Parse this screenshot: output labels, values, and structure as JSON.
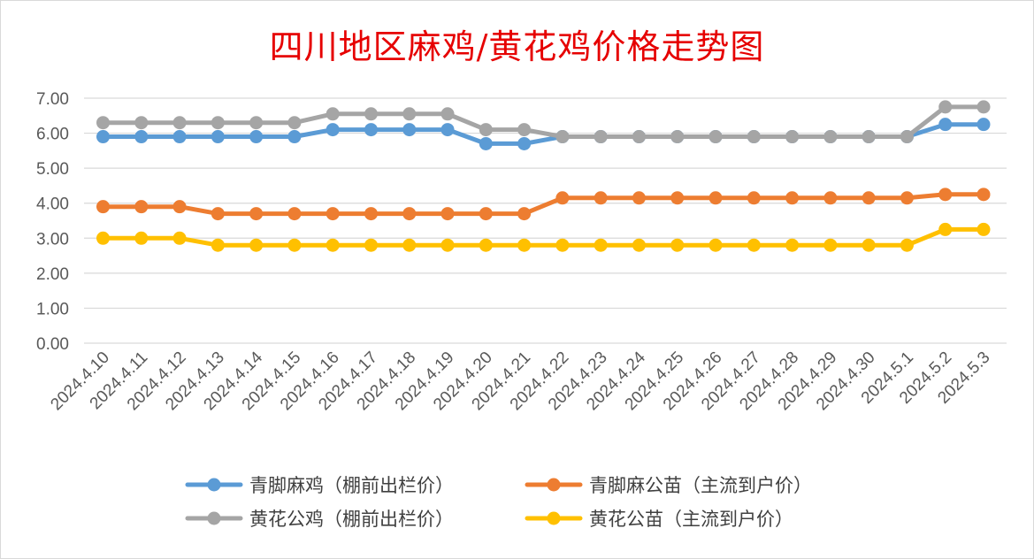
{
  "chart_data": {
    "type": "line",
    "title": "四川地区麻鸡/黄花鸡价格走势图",
    "categories": [
      "2024.4.10",
      "2024.4.11",
      "2024.4.12",
      "2024.4.13",
      "2024.4.14",
      "2024.4.15",
      "2024.4.16",
      "2024.4.17",
      "2024.4.18",
      "2024.4.19",
      "2024.4.20",
      "2024.4.21",
      "2024.4.22",
      "2024.4.23",
      "2024.4.24",
      "2024.4.25",
      "2024.4.26",
      "2024.4.27",
      "2024.4.28",
      "2024.4.29",
      "2024.4.30",
      "2024.5.1",
      "2024.5.2",
      "2024.5.3"
    ],
    "ylim": [
      0,
      7
    ],
    "yticks": [
      "0.00",
      "1.00",
      "2.00",
      "3.00",
      "4.00",
      "5.00",
      "6.00",
      "7.00"
    ],
    "grid": true,
    "legend_position": "bottom",
    "series": [
      {
        "name": "青脚麻鸡（棚前出栏价）",
        "color": "#5b9bd5",
        "values": [
          5.9,
          5.9,
          5.9,
          5.9,
          5.9,
          5.9,
          6.1,
          6.1,
          6.1,
          6.1,
          5.7,
          5.7,
          5.9,
          5.9,
          5.9,
          5.9,
          5.9,
          5.9,
          5.9,
          5.9,
          5.9,
          5.9,
          6.25,
          6.25
        ]
      },
      {
        "name": "青脚麻公苗（主流到户价）",
        "color": "#ed7d31",
        "values": [
          3.9,
          3.9,
          3.9,
          3.7,
          3.7,
          3.7,
          3.7,
          3.7,
          3.7,
          3.7,
          3.7,
          3.7,
          4.15,
          4.15,
          4.15,
          4.15,
          4.15,
          4.15,
          4.15,
          4.15,
          4.15,
          4.15,
          4.25,
          4.25
        ]
      },
      {
        "name": "黄花公鸡（棚前出栏价）",
        "color": "#a5a5a5",
        "values": [
          6.3,
          6.3,
          6.3,
          6.3,
          6.3,
          6.3,
          6.55,
          6.55,
          6.55,
          6.55,
          6.1,
          6.1,
          5.9,
          5.9,
          5.9,
          5.9,
          5.9,
          5.9,
          5.9,
          5.9,
          5.9,
          5.9,
          6.75,
          6.75
        ]
      },
      {
        "name": "黄花公苗（主流到户价）",
        "color": "#ffc000",
        "values": [
          3.0,
          3.0,
          3.0,
          2.8,
          2.8,
          2.8,
          2.8,
          2.8,
          2.8,
          2.8,
          2.8,
          2.8,
          2.8,
          2.8,
          2.8,
          2.8,
          2.8,
          2.8,
          2.8,
          2.8,
          2.8,
          2.8,
          3.25,
          3.25
        ]
      }
    ]
  }
}
